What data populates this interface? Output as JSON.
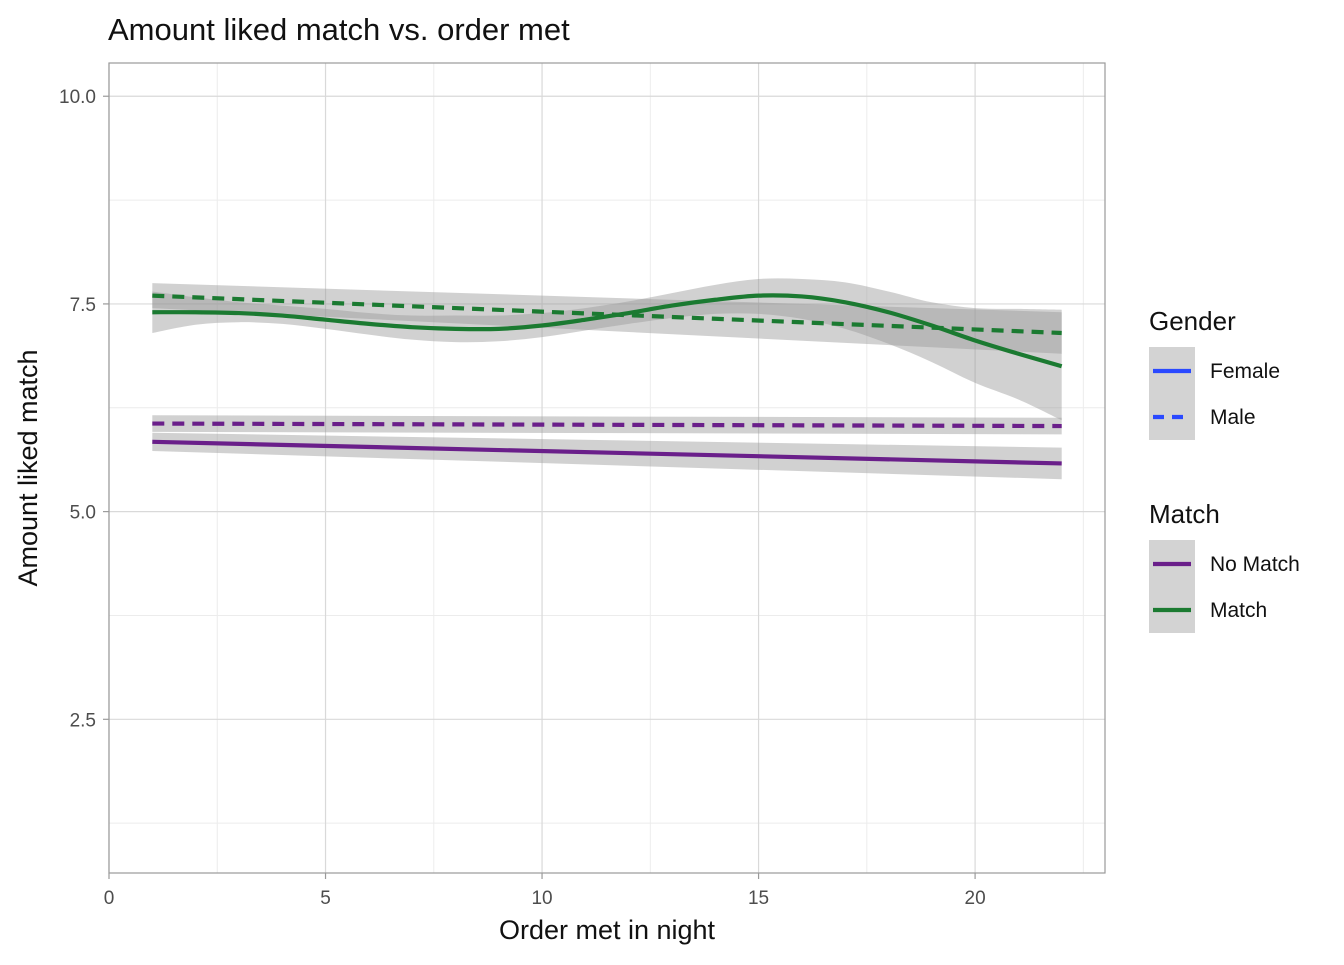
{
  "chart_data": {
    "type": "line",
    "title": "Amount liked match vs. order met",
    "xlabel": "Order met in night",
    "ylabel": "Amount liked match",
    "xlim": [
      0,
      23
    ],
    "ylim": [
      0.65,
      10.4
    ],
    "x_ticks": [
      0,
      5,
      10,
      15,
      20
    ],
    "x_tick_labels": [
      "0",
      "5",
      "10",
      "15",
      "20"
    ],
    "y_ticks": [
      2.5,
      5.0,
      7.5,
      10.0
    ],
    "y_tick_labels": [
      "2.5",
      "5.0",
      "7.5",
      "10.0"
    ],
    "grid": true,
    "legend_position": "right",
    "legends": [
      {
        "title": "Gender",
        "entries": [
          {
            "label": "Female",
            "linetype": "solid",
            "color": "#2a49ff"
          },
          {
            "label": "Male",
            "linetype": "dashed",
            "color": "#2a49ff"
          }
        ]
      },
      {
        "title": "Match",
        "entries": [
          {
            "label": "No Match",
            "linetype": "solid",
            "color": "#6a1f8a"
          },
          {
            "label": "Match",
            "linetype": "solid",
            "color": "#1b7a31"
          }
        ]
      }
    ],
    "series": [
      {
        "gender": "Male",
        "match": "Match",
        "color": "#1b7a31",
        "linetype": "dashed",
        "x": [
          1,
          22
        ],
        "y": [
          7.6,
          7.15
        ],
        "ci_lower": [
          7.45,
          6.9
        ],
        "ci_upper": [
          7.75,
          7.4
        ]
      },
      {
        "gender": "Female",
        "match": "Match",
        "color": "#1b7a31",
        "linetype": "solid",
        "x": [
          1,
          2,
          3,
          4,
          5,
          6,
          7,
          8,
          9,
          10,
          11,
          12,
          13,
          14,
          15,
          16,
          17,
          18,
          19,
          20,
          21,
          22
        ],
        "y": [
          7.4,
          7.4,
          7.39,
          7.36,
          7.31,
          7.26,
          7.22,
          7.2,
          7.2,
          7.24,
          7.31,
          7.39,
          7.48,
          7.55,
          7.6,
          7.59,
          7.52,
          7.4,
          7.24,
          7.06,
          6.9,
          6.75
        ],
        "ci_lower": [
          7.15,
          7.25,
          7.28,
          7.26,
          7.2,
          7.13,
          7.07,
          7.04,
          7.05,
          7.1,
          7.18,
          7.26,
          7.33,
          7.38,
          7.38,
          7.32,
          7.2,
          7.02,
          6.8,
          6.55,
          6.35,
          6.1
        ],
        "ci_upper": [
          7.65,
          7.58,
          7.52,
          7.48,
          7.44,
          7.39,
          7.36,
          7.36,
          7.36,
          7.39,
          7.45,
          7.53,
          7.63,
          7.73,
          7.8,
          7.8,
          7.76,
          7.65,
          7.52,
          7.45,
          7.44,
          7.43
        ]
      },
      {
        "gender": "Male",
        "match": "No Match",
        "color": "#6a1f8a",
        "linetype": "dashed",
        "x": [
          1,
          22
        ],
        "y": [
          6.06,
          6.03
        ],
        "ci_lower": [
          5.96,
          5.93
        ],
        "ci_upper": [
          6.16,
          6.13
        ]
      },
      {
        "gender": "Female",
        "match": "No Match",
        "color": "#6a1f8a",
        "linetype": "solid",
        "x": [
          1,
          22
        ],
        "y": [
          5.84,
          5.58
        ],
        "ci_lower": [
          5.73,
          5.39
        ],
        "ci_upper": [
          5.95,
          5.77
        ]
      }
    ]
  }
}
